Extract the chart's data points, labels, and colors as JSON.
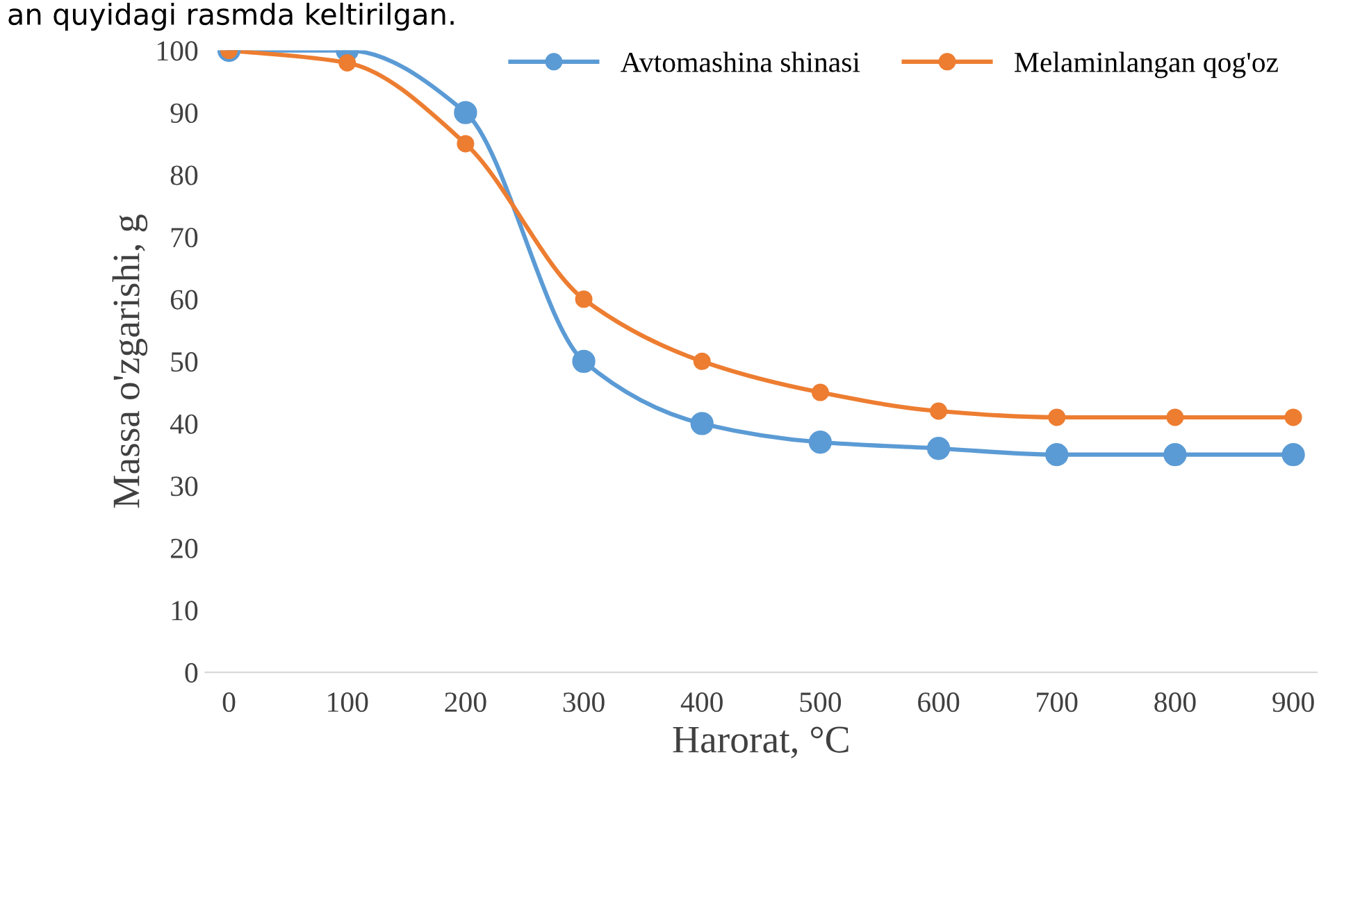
{
  "chart_data": {
    "type": "line",
    "xlabel": "Harorat, °C",
    "ylabel": "Massa o'zgarishi, g",
    "annotations": [
      "an quyidagi rasmda keltirilgan."
    ],
    "x": [
      0,
      100,
      200,
      300,
      400,
      500,
      600,
      700,
      800,
      900
    ],
    "series": [
      {
        "name": "Avtomashina shinasi",
        "color": "#5b9bd5",
        "values": [
          100,
          100,
          90,
          50,
          40,
          37,
          36,
          35,
          35,
          35
        ]
      },
      {
        "name": "Melaminlangan qog'oz",
        "color": "#ed7d31",
        "values": [
          100,
          98,
          85,
          60,
          50,
          45,
          42,
          41,
          41,
          41
        ]
      }
    ],
    "xlim": [
      -20,
      920
    ],
    "ylim": [
      0,
      100
    ],
    "xticks": [
      0,
      100,
      200,
      300,
      400,
      500,
      600,
      700,
      800,
      900
    ],
    "yticks": [
      0,
      10,
      20,
      30,
      40,
      50,
      60,
      70,
      80,
      90,
      100
    ],
    "grid": false,
    "legend": "top",
    "marker": "circle",
    "line_style": "solid"
  }
}
